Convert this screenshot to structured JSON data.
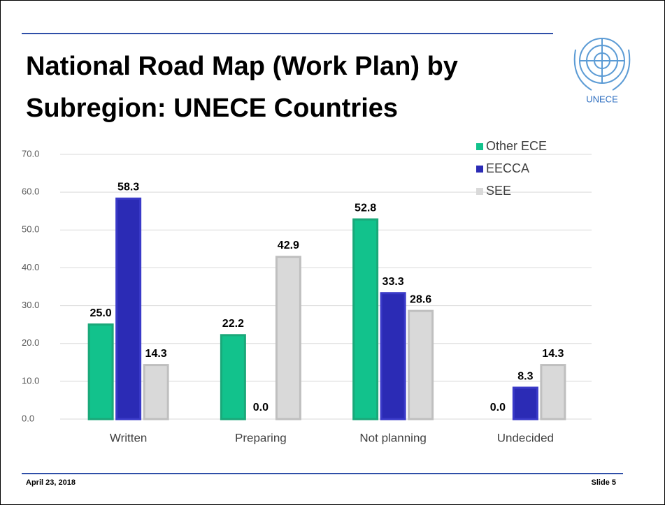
{
  "chart_data": {
    "type": "bar",
    "title": "National Road Map (Work Plan) by Subregion: UNECE Countries",
    "categories": [
      "Written",
      "Preparing",
      "Not planning",
      "Undecided"
    ],
    "series": [
      {
        "name": "Other ECE",
        "color": "#12c28c",
        "values": [
          25,
          22.2,
          52.8,
          0
        ],
        "value_labels": [
          "25.0",
          "22.2",
          "52.8",
          "0.0"
        ]
      },
      {
        "name": "EECCA",
        "color": "#2b2bb5",
        "values": [
          58.3,
          0,
          33.3,
          8.3
        ],
        "value_labels": [
          "58.3",
          "0.0",
          "33.3",
          "8.3"
        ]
      },
      {
        "name": "SEE",
        "color": "#d9d9d9",
        "values": [
          14.3,
          42.9,
          28.6,
          14.3
        ],
        "value_labels": [
          "14.3",
          "42.9",
          "28.6",
          "14.3"
        ]
      }
    ],
    "ylim": [
      0,
      70
    ],
    "yticks": [
      {
        "value": 0,
        "label": "0.0"
      },
      {
        "value": 10,
        "label": "10.0"
      },
      {
        "value": 20,
        "label": "20.0"
      },
      {
        "value": 30,
        "label": "30.0"
      },
      {
        "value": 40,
        "label": "40.0"
      },
      {
        "value": 50,
        "label": "50.0"
      },
      {
        "value": 60,
        "label": "60.0"
      },
      {
        "value": 70,
        "label": "70.0"
      }
    ],
    "grid": true,
    "legend": "top-right"
  },
  "logo_text": "UNECE",
  "footer": {
    "date": "April 23, 2018",
    "slide": "Slide 5"
  }
}
